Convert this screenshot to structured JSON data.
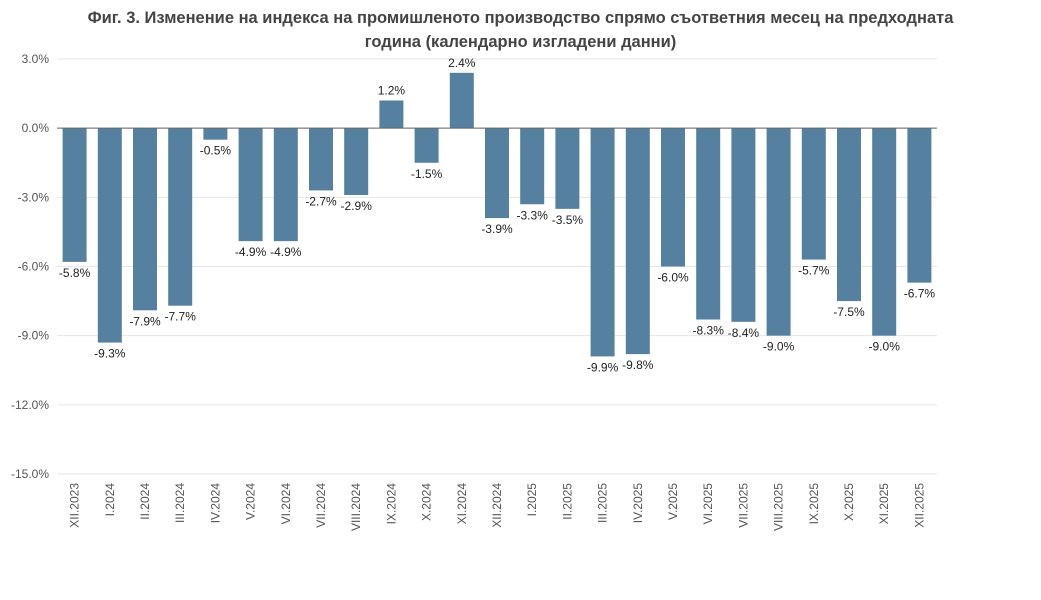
{
  "chart_data": {
    "type": "bar",
    "title_line1": "Фиг. 3. Изменение на индекса на промишленото производство спрямо съответния месец на предходната",
    "title_line2": "година (календарно изгладени данни)",
    "categories": [
      "XII.2023",
      "I.2024",
      "II.2024",
      "III.2024",
      "IV.2024",
      "V.2024",
      "VI.2024",
      "VII.2024",
      "VIII.2024",
      "IX.2024",
      "X.2024",
      "XI.2024",
      "XII.2024",
      "I.2025",
      "II.2025",
      "III.2025",
      "IV.2025",
      "V.2025",
      "VI.2025",
      "VII.2025",
      "VIII.2025",
      "IX.2025",
      "X.2025",
      "XI.2025",
      "XII.2025"
    ],
    "values": [
      -5.8,
      -9.3,
      -7.9,
      -7.7,
      -0.5,
      -4.9,
      -4.9,
      -2.7,
      -2.9,
      1.2,
      -1.5,
      2.4,
      -3.9,
      -3.3,
      -3.5,
      -9.9,
      -9.8,
      -6.0,
      -8.3,
      -8.4,
      -9.0,
      -5.7,
      -7.5,
      -9.0,
      -6.7
    ],
    "yticks": [
      3,
      0,
      -3,
      -6,
      -9,
      -12,
      -15
    ],
    "ylim": [
      -15,
      3
    ],
    "grid": true,
    "bar_color": "#55809f",
    "xlabel": "",
    "ylabel": ""
  }
}
